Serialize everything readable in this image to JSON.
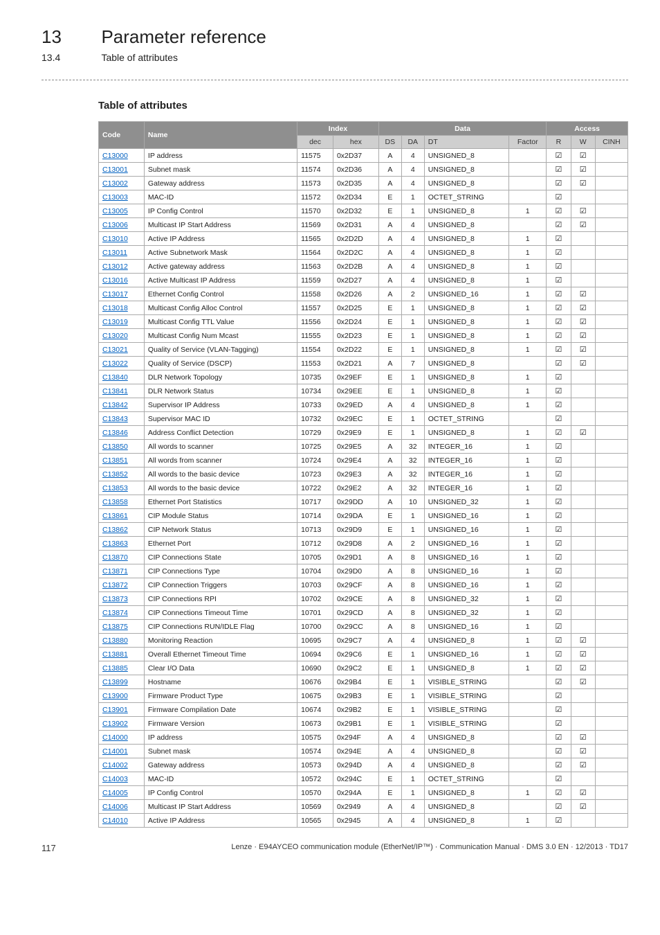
{
  "chapter": {
    "num": "13",
    "title": "Parameter reference"
  },
  "subsection": {
    "num": "13.4",
    "title": "Table of attributes"
  },
  "section_title": "Table of attributes",
  "headers": {
    "top": [
      "Code",
      "Name",
      "Index",
      "Data",
      "Access"
    ],
    "sub": {
      "dec": "dec",
      "hex": "hex",
      "ds": "DS",
      "da": "DA",
      "dt": "DT",
      "factor": "Factor",
      "r": "R",
      "w": "W",
      "cinh": "CINH"
    }
  },
  "check": "☑",
  "rows": [
    {
      "code": "C13000",
      "name": "IP address",
      "dec": "11575",
      "hex": "0x2D37",
      "ds": "A",
      "da": "4",
      "dt": "UNSIGNED_8",
      "factor": "",
      "r": true,
      "w": true,
      "cinh": false
    },
    {
      "code": "C13001",
      "name": "Subnet mask",
      "dec": "11574",
      "hex": "0x2D36",
      "ds": "A",
      "da": "4",
      "dt": "UNSIGNED_8",
      "factor": "",
      "r": true,
      "w": true,
      "cinh": false
    },
    {
      "code": "C13002",
      "name": "Gateway address",
      "dec": "11573",
      "hex": "0x2D35",
      "ds": "A",
      "da": "4",
      "dt": "UNSIGNED_8",
      "factor": "",
      "r": true,
      "w": true,
      "cinh": false
    },
    {
      "code": "C13003",
      "name": "MAC-ID",
      "dec": "11572",
      "hex": "0x2D34",
      "ds": "E",
      "da": "1",
      "dt": "OCTET_STRING",
      "factor": "",
      "r": true,
      "w": false,
      "cinh": false
    },
    {
      "code": "C13005",
      "name": "IP Config Control",
      "dec": "11570",
      "hex": "0x2D32",
      "ds": "E",
      "da": "1",
      "dt": "UNSIGNED_8",
      "factor": "1",
      "r": true,
      "w": true,
      "cinh": false
    },
    {
      "code": "C13006",
      "name": "Multicast IP Start Address",
      "dec": "11569",
      "hex": "0x2D31",
      "ds": "A",
      "da": "4",
      "dt": "UNSIGNED_8",
      "factor": "",
      "r": true,
      "w": true,
      "cinh": false
    },
    {
      "code": "C13010",
      "name": "Active IP Address",
      "dec": "11565",
      "hex": "0x2D2D",
      "ds": "A",
      "da": "4",
      "dt": "UNSIGNED_8",
      "factor": "1",
      "r": true,
      "w": false,
      "cinh": false
    },
    {
      "code": "C13011",
      "name": "Active Subnetwork Mask",
      "dec": "11564",
      "hex": "0x2D2C",
      "ds": "A",
      "da": "4",
      "dt": "UNSIGNED_8",
      "factor": "1",
      "r": true,
      "w": false,
      "cinh": false
    },
    {
      "code": "C13012",
      "name": "Active gateway address",
      "dec": "11563",
      "hex": "0x2D2B",
      "ds": "A",
      "da": "4",
      "dt": "UNSIGNED_8",
      "factor": "1",
      "r": true,
      "w": false,
      "cinh": false
    },
    {
      "code": "C13016",
      "name": "Active Multicast IP Address",
      "dec": "11559",
      "hex": "0x2D27",
      "ds": "A",
      "da": "4",
      "dt": "UNSIGNED_8",
      "factor": "1",
      "r": true,
      "w": false,
      "cinh": false
    },
    {
      "code": "C13017",
      "name": "Ethernet Config Control",
      "dec": "11558",
      "hex": "0x2D26",
      "ds": "A",
      "da": "2",
      "dt": "UNSIGNED_16",
      "factor": "1",
      "r": true,
      "w": true,
      "cinh": false
    },
    {
      "code": "C13018",
      "name": "Multicast Config Alloc Control",
      "dec": "11557",
      "hex": "0x2D25",
      "ds": "E",
      "da": "1",
      "dt": "UNSIGNED_8",
      "factor": "1",
      "r": true,
      "w": true,
      "cinh": false
    },
    {
      "code": "C13019",
      "name": "Multicast Config TTL Value",
      "dec": "11556",
      "hex": "0x2D24",
      "ds": "E",
      "da": "1",
      "dt": "UNSIGNED_8",
      "factor": "1",
      "r": true,
      "w": true,
      "cinh": false
    },
    {
      "code": "C13020",
      "name": "Multicast Config Num Mcast",
      "dec": "11555",
      "hex": "0x2D23",
      "ds": "E",
      "da": "1",
      "dt": "UNSIGNED_8",
      "factor": "1",
      "r": true,
      "w": true,
      "cinh": false
    },
    {
      "code": "C13021",
      "name": "Quality of Service (VLAN-Tagging)",
      "dec": "11554",
      "hex": "0x2D22",
      "ds": "E",
      "da": "1",
      "dt": "UNSIGNED_8",
      "factor": "1",
      "r": true,
      "w": true,
      "cinh": false
    },
    {
      "code": "C13022",
      "name": "Quality of Service (DSCP)",
      "dec": "11553",
      "hex": "0x2D21",
      "ds": "A",
      "da": "7",
      "dt": "UNSIGNED_8",
      "factor": "",
      "r": true,
      "w": true,
      "cinh": false
    },
    {
      "code": "C13840",
      "name": "DLR Network Topology",
      "dec": "10735",
      "hex": "0x29EF",
      "ds": "E",
      "da": "1",
      "dt": "UNSIGNED_8",
      "factor": "1",
      "r": true,
      "w": false,
      "cinh": false
    },
    {
      "code": "C13841",
      "name": "DLR Network Status",
      "dec": "10734",
      "hex": "0x29EE",
      "ds": "E",
      "da": "1",
      "dt": "UNSIGNED_8",
      "factor": "1",
      "r": true,
      "w": false,
      "cinh": false
    },
    {
      "code": "C13842",
      "name": "Supervisor IP Address",
      "dec": "10733",
      "hex": "0x29ED",
      "ds": "A",
      "da": "4",
      "dt": "UNSIGNED_8",
      "factor": "1",
      "r": true,
      "w": false,
      "cinh": false
    },
    {
      "code": "C13843",
      "name": "Supervisor MAC ID",
      "dec": "10732",
      "hex": "0x29EC",
      "ds": "E",
      "da": "1",
      "dt": "OCTET_STRING",
      "factor": "",
      "r": true,
      "w": false,
      "cinh": false
    },
    {
      "code": "C13846",
      "name": "Address Conflict Detection",
      "dec": "10729",
      "hex": "0x29E9",
      "ds": "E",
      "da": "1",
      "dt": "UNSIGNED_8",
      "factor": "1",
      "r": true,
      "w": true,
      "cinh": false
    },
    {
      "code": "C13850",
      "name": "All words to scanner",
      "dec": "10725",
      "hex": "0x29E5",
      "ds": "A",
      "da": "32",
      "dt": "INTEGER_16",
      "factor": "1",
      "r": true,
      "w": false,
      "cinh": false
    },
    {
      "code": "C13851",
      "name": "All words from scanner",
      "dec": "10724",
      "hex": "0x29E4",
      "ds": "A",
      "da": "32",
      "dt": "INTEGER_16",
      "factor": "1",
      "r": true,
      "w": false,
      "cinh": false
    },
    {
      "code": "C13852",
      "name": "All words to the basic device",
      "dec": "10723",
      "hex": "0x29E3",
      "ds": "A",
      "da": "32",
      "dt": "INTEGER_16",
      "factor": "1",
      "r": true,
      "w": false,
      "cinh": false
    },
    {
      "code": "C13853",
      "name": "All words to the basic device",
      "dec": "10722",
      "hex": "0x29E2",
      "ds": "A",
      "da": "32",
      "dt": "INTEGER_16",
      "factor": "1",
      "r": true,
      "w": false,
      "cinh": false
    },
    {
      "code": "C13858",
      "name": "Ethernet Port Statistics",
      "dec": "10717",
      "hex": "0x29DD",
      "ds": "A",
      "da": "10",
      "dt": "UNSIGNED_32",
      "factor": "1",
      "r": true,
      "w": false,
      "cinh": false
    },
    {
      "code": "C13861",
      "name": "CIP Module Status",
      "dec": "10714",
      "hex": "0x29DA",
      "ds": "E",
      "da": "1",
      "dt": "UNSIGNED_16",
      "factor": "1",
      "r": true,
      "w": false,
      "cinh": false
    },
    {
      "code": "C13862",
      "name": "CIP Network Status",
      "dec": "10713",
      "hex": "0x29D9",
      "ds": "E",
      "da": "1",
      "dt": "UNSIGNED_16",
      "factor": "1",
      "r": true,
      "w": false,
      "cinh": false
    },
    {
      "code": "C13863",
      "name": "Ethernet Port",
      "dec": "10712",
      "hex": "0x29D8",
      "ds": "A",
      "da": "2",
      "dt": "UNSIGNED_16",
      "factor": "1",
      "r": true,
      "w": false,
      "cinh": false
    },
    {
      "code": "C13870",
      "name": "CIP Connections State",
      "dec": "10705",
      "hex": "0x29D1",
      "ds": "A",
      "da": "8",
      "dt": "UNSIGNED_16",
      "factor": "1",
      "r": true,
      "w": false,
      "cinh": false
    },
    {
      "code": "C13871",
      "name": "CIP Connections Type",
      "dec": "10704",
      "hex": "0x29D0",
      "ds": "A",
      "da": "8",
      "dt": "UNSIGNED_16",
      "factor": "1",
      "r": true,
      "w": false,
      "cinh": false
    },
    {
      "code": "C13872",
      "name": "CIP Connection Triggers",
      "dec": "10703",
      "hex": "0x29CF",
      "ds": "A",
      "da": "8",
      "dt": "UNSIGNED_16",
      "factor": "1",
      "r": true,
      "w": false,
      "cinh": false
    },
    {
      "code": "C13873",
      "name": "CIP Connections RPI",
      "dec": "10702",
      "hex": "0x29CE",
      "ds": "A",
      "da": "8",
      "dt": "UNSIGNED_32",
      "factor": "1",
      "r": true,
      "w": false,
      "cinh": false
    },
    {
      "code": "C13874",
      "name": "CIP Connections Timeout Time",
      "dec": "10701",
      "hex": "0x29CD",
      "ds": "A",
      "da": "8",
      "dt": "UNSIGNED_32",
      "factor": "1",
      "r": true,
      "w": false,
      "cinh": false
    },
    {
      "code": "C13875",
      "name": "CIP Connections RUN/IDLE Flag",
      "dec": "10700",
      "hex": "0x29CC",
      "ds": "A",
      "da": "8",
      "dt": "UNSIGNED_16",
      "factor": "1",
      "r": true,
      "w": false,
      "cinh": false
    },
    {
      "code": "C13880",
      "name": "Monitoring Reaction",
      "dec": "10695",
      "hex": "0x29C7",
      "ds": "A",
      "da": "4",
      "dt": "UNSIGNED_8",
      "factor": "1",
      "r": true,
      "w": true,
      "cinh": false
    },
    {
      "code": "C13881",
      "name": "Overall Ethernet Timeout Time",
      "dec": "10694",
      "hex": "0x29C6",
      "ds": "E",
      "da": "1",
      "dt": "UNSIGNED_16",
      "factor": "1",
      "r": true,
      "w": true,
      "cinh": false
    },
    {
      "code": "C13885",
      "name": "Clear I/O Data",
      "dec": "10690",
      "hex": "0x29C2",
      "ds": "E",
      "da": "1",
      "dt": "UNSIGNED_8",
      "factor": "1",
      "r": true,
      "w": true,
      "cinh": false
    },
    {
      "code": "C13899",
      "name": "Hostname",
      "dec": "10676",
      "hex": "0x29B4",
      "ds": "E",
      "da": "1",
      "dt": "VISIBLE_STRING",
      "factor": "",
      "r": true,
      "w": true,
      "cinh": false
    },
    {
      "code": "C13900",
      "name": "Firmware Product Type",
      "dec": "10675",
      "hex": "0x29B3",
      "ds": "E",
      "da": "1",
      "dt": "VISIBLE_STRING",
      "factor": "",
      "r": true,
      "w": false,
      "cinh": false
    },
    {
      "code": "C13901",
      "name": "Firmware Compilation Date",
      "dec": "10674",
      "hex": "0x29B2",
      "ds": "E",
      "da": "1",
      "dt": "VISIBLE_STRING",
      "factor": "",
      "r": true,
      "w": false,
      "cinh": false
    },
    {
      "code": "C13902",
      "name": "Firmware Version",
      "dec": "10673",
      "hex": "0x29B1",
      "ds": "E",
      "da": "1",
      "dt": "VISIBLE_STRING",
      "factor": "",
      "r": true,
      "w": false,
      "cinh": false
    },
    {
      "code": "C14000",
      "name": "IP address",
      "dec": "10575",
      "hex": "0x294F",
      "ds": "A",
      "da": "4",
      "dt": "UNSIGNED_8",
      "factor": "",
      "r": true,
      "w": true,
      "cinh": false
    },
    {
      "code": "C14001",
      "name": "Subnet mask",
      "dec": "10574",
      "hex": "0x294E",
      "ds": "A",
      "da": "4",
      "dt": "UNSIGNED_8",
      "factor": "",
      "r": true,
      "w": true,
      "cinh": false
    },
    {
      "code": "C14002",
      "name": "Gateway address",
      "dec": "10573",
      "hex": "0x294D",
      "ds": "A",
      "da": "4",
      "dt": "UNSIGNED_8",
      "factor": "",
      "r": true,
      "w": true,
      "cinh": false
    },
    {
      "code": "C14003",
      "name": "MAC-ID",
      "dec": "10572",
      "hex": "0x294C",
      "ds": "E",
      "da": "1",
      "dt": "OCTET_STRING",
      "factor": "",
      "r": true,
      "w": false,
      "cinh": false
    },
    {
      "code": "C14005",
      "name": "IP Config Control",
      "dec": "10570",
      "hex": "0x294A",
      "ds": "E",
      "da": "1",
      "dt": "UNSIGNED_8",
      "factor": "1",
      "r": true,
      "w": true,
      "cinh": false
    },
    {
      "code": "C14006",
      "name": "Multicast IP Start Address",
      "dec": "10569",
      "hex": "0x2949",
      "ds": "A",
      "da": "4",
      "dt": "UNSIGNED_8",
      "factor": "",
      "r": true,
      "w": true,
      "cinh": false
    },
    {
      "code": "C14010",
      "name": "Active IP Address",
      "dec": "10565",
      "hex": "0x2945",
      "ds": "A",
      "da": "4",
      "dt": "UNSIGNED_8",
      "factor": "1",
      "r": true,
      "w": false,
      "cinh": false
    }
  ],
  "footer": {
    "page": "117",
    "text": "Lenze · E94AYCEO communication module (EtherNet/IP™) · Communication Manual · DMS 3.0 EN · 12/2013 · TD17"
  }
}
